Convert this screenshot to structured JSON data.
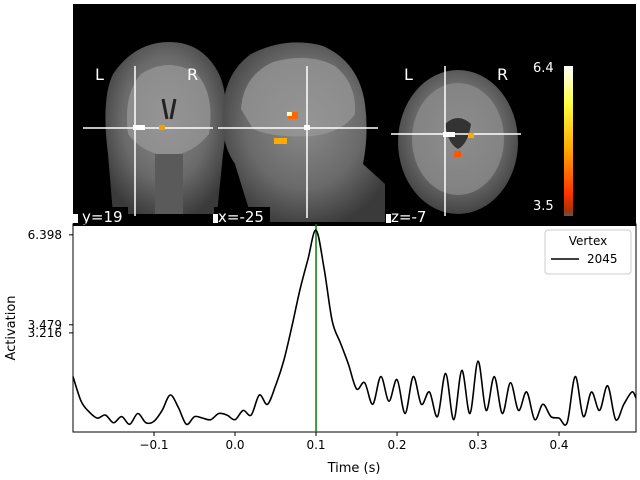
{
  "brain_views": {
    "coronal": {
      "left_label": "L",
      "right_label": "R",
      "coord": "y=19"
    },
    "sagittal": {
      "coord": "x=-25"
    },
    "axial": {
      "left_label": "L",
      "right_label": "R",
      "coord": "z=-7"
    },
    "colorbar": {
      "max_label": "6.4",
      "min_label": "3.5"
    }
  },
  "chart_data": {
    "type": "line",
    "xlabel": "Time (s)",
    "ylabel": "Activation",
    "xlim": [
      -0.2,
      0.495
    ],
    "ylim": [
      0.0,
      6.75
    ],
    "xticks": [
      -0.1,
      0.0,
      0.1,
      0.2,
      0.3,
      0.4
    ],
    "xtick_labels": [
      "−0.1",
      "0.0",
      "0.1",
      "0.2",
      "0.3",
      "0.4"
    ],
    "yticks": [
      6.398,
      3.479,
      3.216
    ],
    "ytick_labels": [
      "6.398",
      "3.479",
      "3.216"
    ],
    "vline_x": 0.1,
    "vline_color": "#008000",
    "legend": {
      "title": "Vertex",
      "entries": [
        "2045"
      ],
      "placement": "top-right"
    },
    "series": [
      {
        "name": "2045",
        "color": "#000000",
        "x": [
          -0.2,
          -0.19,
          -0.18,
          -0.17,
          -0.16,
          -0.15,
          -0.14,
          -0.13,
          -0.12,
          -0.11,
          -0.1,
          -0.09,
          -0.08,
          -0.07,
          -0.06,
          -0.05,
          -0.04,
          -0.03,
          -0.02,
          -0.01,
          0.0,
          0.01,
          0.02,
          0.03,
          0.04,
          0.05,
          0.06,
          0.07,
          0.08,
          0.09,
          0.1,
          0.11,
          0.12,
          0.13,
          0.14,
          0.15,
          0.16,
          0.17,
          0.18,
          0.19,
          0.2,
          0.21,
          0.22,
          0.23,
          0.24,
          0.25,
          0.26,
          0.27,
          0.28,
          0.29,
          0.3,
          0.31,
          0.32,
          0.33,
          0.34,
          0.35,
          0.36,
          0.37,
          0.38,
          0.39,
          0.4,
          0.41,
          0.42,
          0.43,
          0.44,
          0.45,
          0.46,
          0.47,
          0.48,
          0.49,
          0.495
        ],
        "y": [
          1.8,
          1.0,
          0.65,
          0.45,
          0.55,
          0.3,
          0.5,
          0.25,
          0.6,
          0.3,
          0.35,
          0.7,
          1.2,
          0.8,
          0.25,
          0.5,
          0.45,
          0.4,
          0.6,
          0.55,
          0.4,
          0.7,
          0.55,
          1.2,
          0.9,
          1.5,
          2.3,
          3.4,
          4.6,
          5.6,
          6.55,
          5.3,
          3.6,
          2.9,
          2.2,
          1.4,
          1.6,
          0.9,
          1.8,
          1.0,
          1.7,
          0.6,
          1.8,
          0.9,
          1.3,
          0.5,
          1.9,
          0.4,
          2.0,
          0.6,
          2.3,
          0.7,
          1.8,
          0.6,
          1.6,
          0.7,
          1.3,
          0.4,
          0.9,
          0.5,
          0.45,
          0.3,
          1.8,
          0.5,
          1.3,
          0.7,
          1.5,
          0.4,
          0.9,
          1.3,
          1.1
        ]
      }
    ]
  }
}
